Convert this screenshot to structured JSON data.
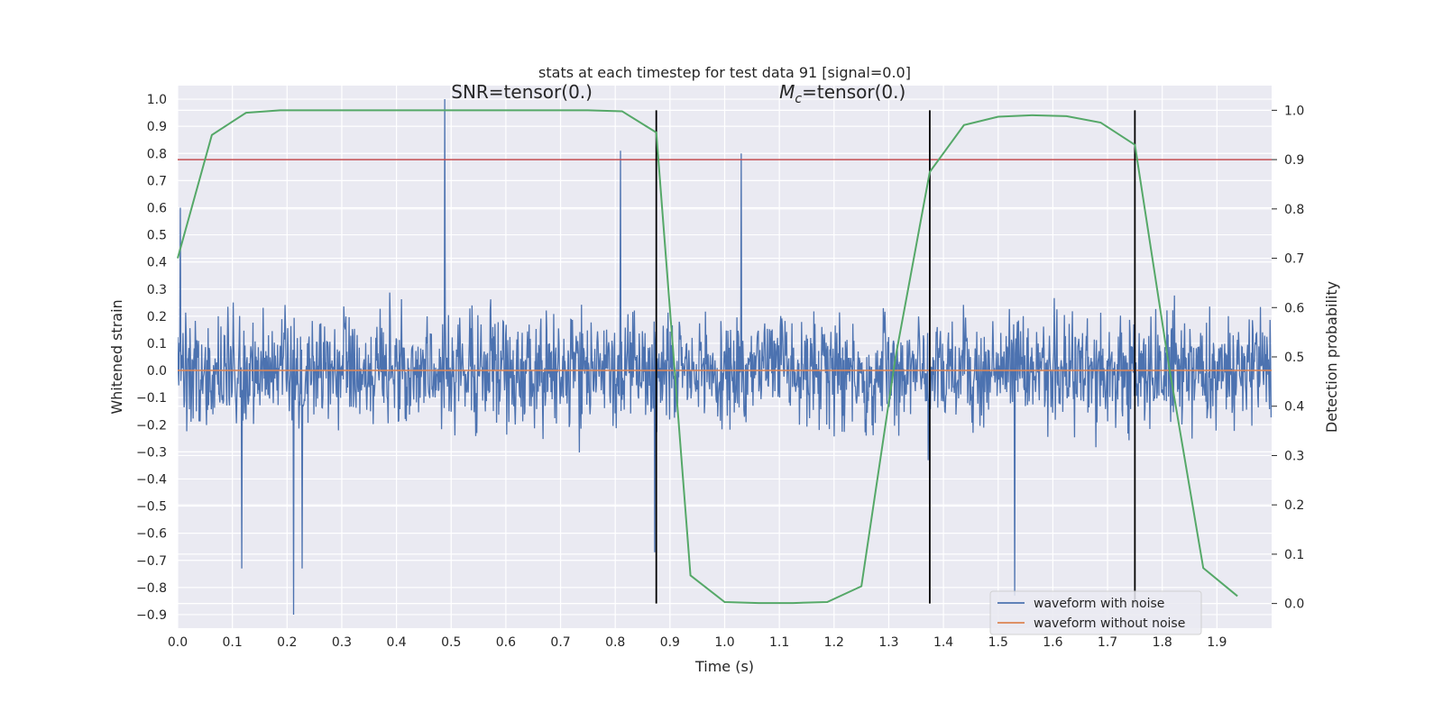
{
  "chart_data": {
    "type": "line",
    "title": "stats at each timestep for test data 91 [signal=0.0]",
    "xlabel": "Time (s)",
    "ylabel_left": "Whitened strain",
    "ylabel_right": "Detection probability",
    "xlim": [
      0.0,
      2.0
    ],
    "ylim_left": [
      -0.95,
      1.05
    ],
    "ylim_right": [
      -0.05,
      1.05
    ],
    "x_ticks": [
      "0.0",
      "0.1",
      "0.2",
      "0.3",
      "0.4",
      "0.5",
      "0.6",
      "0.7",
      "0.8",
      "0.9",
      "1.0",
      "1.1",
      "1.2",
      "1.3",
      "1.4",
      "1.5",
      "1.6",
      "1.7",
      "1.8",
      "1.9"
    ],
    "y_ticks_left": [
      "1.0",
      "0.9",
      "0.8",
      "0.7",
      "0.6",
      "0.5",
      "0.4",
      "0.3",
      "0.2",
      "0.1",
      "0.0",
      "−0.1",
      "−0.2",
      "−0.3",
      "−0.4",
      "−0.5",
      "−0.6",
      "−0.7",
      "−0.8",
      "−0.9"
    ],
    "y_ticks_right": [
      "1.0",
      "0.9",
      "0.8",
      "0.7",
      "0.6",
      "0.5",
      "0.4",
      "0.3",
      "0.2",
      "0.1",
      "0.0"
    ],
    "grid": true,
    "legend_position": "lower-right",
    "annotations": [
      {
        "text": "SNR=tensor(0.)",
        "x": 0.5,
        "y": 1.0
      },
      {
        "text_prefix": "M",
        "text_sub": "c",
        "text_rest": "=tensor(0.)",
        "x": 1.1,
        "y": 1.0
      }
    ],
    "series": [
      {
        "name": "waveform with noise",
        "axis": "left",
        "color": "#4c72b0",
        "style": "noise",
        "approx_range": [
          -0.9,
          1.0
        ],
        "peaks": [
          {
            "x": 0.488,
            "y": 1.0
          },
          {
            "x": 0.81,
            "y": 0.81
          },
          {
            "x": 1.03,
            "y": 0.8
          },
          {
            "x": 0.005,
            "y": 0.6
          },
          {
            "x": 0.212,
            "y": -0.9
          },
          {
            "x": 0.117,
            "y": -0.73
          },
          {
            "x": 0.228,
            "y": -0.73
          },
          {
            "x": 1.53,
            "y": -0.83
          },
          {
            "x": 0.872,
            "y": -0.67
          }
        ]
      },
      {
        "name": "waveform without noise",
        "axis": "left",
        "color": "#dd8452",
        "x": [
          0.0,
          2.0
        ],
        "values": [
          0.0,
          0.0
        ]
      },
      {
        "name": "",
        "axis": "right",
        "color": "#55a868",
        "x": [
          0.0,
          0.0625,
          0.125,
          0.1875,
          0.25,
          0.3125,
          0.375,
          0.4375,
          0.5,
          0.5625,
          0.625,
          0.6875,
          0.75,
          0.8125,
          0.875,
          0.9375,
          1.0,
          1.0625,
          1.125,
          1.1875,
          1.25,
          1.3125,
          1.375,
          1.4375,
          1.5,
          1.5625,
          1.625,
          1.6875,
          1.75,
          1.8125,
          1.875,
          1.9375
        ],
        "values": [
          0.7,
          0.95,
          0.995,
          1.0,
          1.0,
          1.0,
          1.0,
          1.0,
          1.0,
          1.0,
          1.0,
          1.0,
          1.0,
          0.998,
          0.955,
          0.057,
          0.003,
          0.001,
          0.001,
          0.003,
          0.035,
          0.5,
          0.875,
          0.97,
          0.987,
          0.99,
          0.988,
          0.975,
          0.93,
          0.48,
          0.072,
          0.015
        ]
      }
    ],
    "threshold_line": {
      "axis": "right",
      "value": 0.9,
      "color": "#c44e52"
    },
    "vertical_lines": [
      {
        "x": 0.875,
        "y_from": 0.0,
        "y_to": 1.0
      },
      {
        "x": 1.375,
        "y_from": 0.0,
        "y_to": 1.0
      },
      {
        "x": 1.75,
        "y_from": 0.0,
        "y_to": 1.0
      }
    ]
  }
}
